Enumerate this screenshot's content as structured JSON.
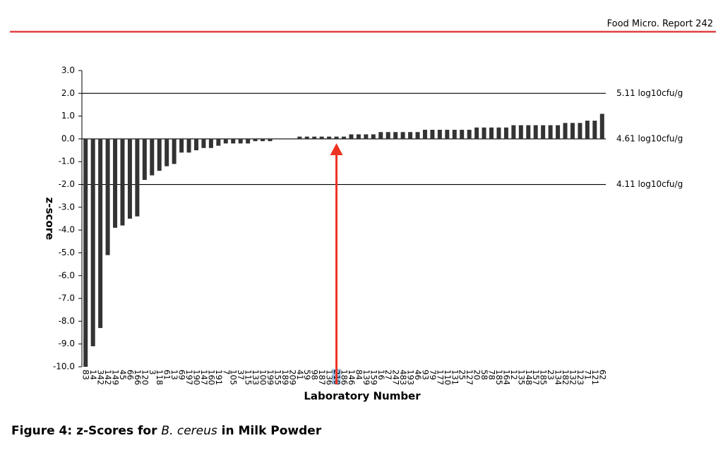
{
  "header": {
    "title": "Food Micro. Report 242"
  },
  "chart_data": {
    "type": "bar",
    "categories": [
      "83",
      "14",
      "342",
      "142",
      "149",
      "45",
      "66",
      "166",
      "120",
      "3",
      "118",
      "61",
      "13",
      "69",
      "197",
      "190",
      "147",
      "160",
      "191",
      "7",
      "105",
      "37",
      "115",
      "133",
      "100",
      "199",
      "155",
      "189",
      "209",
      "41",
      "59",
      "98",
      "187",
      "136",
      "210",
      "186",
      "146",
      "84",
      "139",
      "159",
      "16",
      "27",
      "247",
      "483",
      "193",
      "46",
      "93",
      "79",
      "177",
      "110",
      "131",
      "25",
      "127",
      "20",
      "58",
      "78",
      "185",
      "164",
      "12",
      "135",
      "148",
      "157",
      "185",
      "23",
      "134",
      "182",
      "132",
      "123",
      "71",
      "121",
      "62"
    ],
    "values": [
      -10,
      -9.1,
      -8.3,
      -5.1,
      -3.9,
      -3.8,
      -3.5,
      -3.4,
      -1.8,
      -1.6,
      -1.4,
      -1.2,
      -1.1,
      -0.6,
      -0.6,
      -0.5,
      -0.4,
      -0.4,
      -0.3,
      -0.2,
      -0.2,
      -0.2,
      -0.2,
      -0.1,
      -0.1,
      -0.1,
      0,
      0,
      0,
      0.1,
      0.1,
      0.1,
      0.1,
      0.1,
      0.1,
      0.1,
      0.2,
      0.2,
      0.2,
      0.2,
      0.3,
      0.3,
      0.3,
      0.3,
      0.3,
      0.3,
      0.4,
      0.4,
      0.4,
      0.4,
      0.4,
      0.4,
      0.4,
      0.5,
      0.5,
      0.5,
      0.5,
      0.5,
      0.6,
      0.6,
      0.6,
      0.6,
      0.6,
      0.6,
      0.6,
      0.7,
      0.7,
      0.7,
      0.8,
      0.8,
      1.1
    ],
    "color": "#333333",
    "xlabel": "Laboratory Number",
    "ylabel": "z-score",
    "ylim": [
      -10,
      3
    ],
    "yticks": [
      {
        "value": 3,
        "label": "3.0"
      },
      {
        "value": 2,
        "label": "2.0"
      },
      {
        "value": 1,
        "label": "1.0"
      },
      {
        "value": 0,
        "label": "0.0"
      },
      {
        "value": -1,
        "label": "-1.0"
      },
      {
        "value": -2,
        "label": "-2.0"
      },
      {
        "value": -3,
        "label": "-3.0"
      },
      {
        "value": -4,
        "label": "-4.0"
      },
      {
        "value": -5,
        "label": "-5.0"
      },
      {
        "value": -6,
        "label": "-6.0"
      },
      {
        "value": -7,
        "label": "-7.0"
      },
      {
        "value": -8,
        "label": "-8.0"
      },
      {
        "value": -9,
        "label": "-9.0"
      },
      {
        "value": -10,
        "label": "-10.0"
      }
    ],
    "reference_lines": [
      {
        "value": 2,
        "label": "5.11 log10cfu/g"
      },
      {
        "value": 0,
        "label": "4.61 log10cfu/g"
      },
      {
        "value": -2,
        "label": "4.11 log10cfu/g"
      }
    ],
    "highlight": "210"
  },
  "caption": {
    "prefix": "Figure 4:",
    "text1": "z-Scores for ",
    "italic": "B. cereus",
    "text2": " in Milk Powder"
  }
}
